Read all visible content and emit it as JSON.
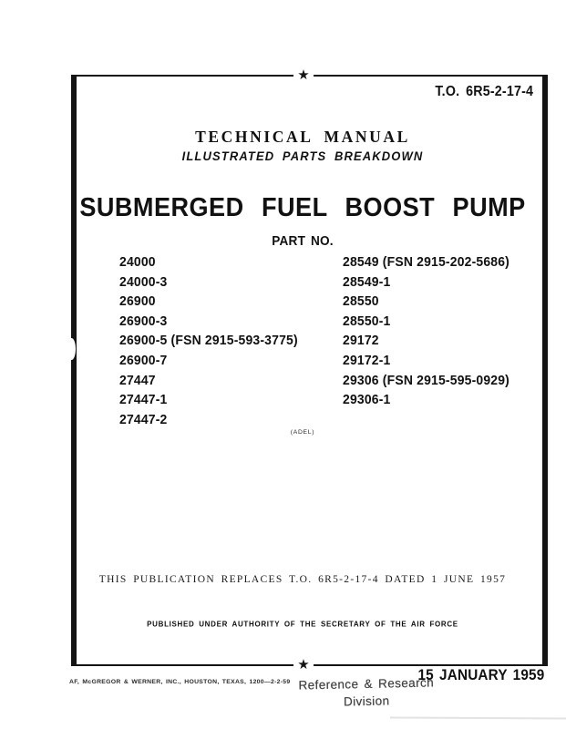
{
  "decor": {
    "star": "★"
  },
  "header": {
    "to_number": "T.O. 6R5-2-17-4",
    "heading": "TECHNICAL MANUAL",
    "subheading": "ILLUSTRATED PARTS BREAKDOWN"
  },
  "title": "SUBMERGED FUEL BOOST PUMP",
  "parts": {
    "label": "PART NO.",
    "left": [
      "24000",
      "24000-3",
      "26900",
      "26900-3",
      "26900-5 (FSN 2915-593-3775)",
      "26900-7",
      "27447",
      "27447-1",
      "27447-2"
    ],
    "right": [
      "28549 (FSN 2915-202-5686)",
      "28549-1",
      "28550",
      "28550-1",
      "29172",
      "29172-1",
      "29306 (FSN 2915-595-0929)",
      "29306-1"
    ]
  },
  "manufacturer_note": "(ADEL)",
  "notices": {
    "replacement": "THIS PUBLICATION REPLACES T.O. 6R5-2-17-4 DATED 1 JUNE 1957",
    "authority": "PUBLISHED UNDER AUTHORITY OF THE SECRETARY OF THE AIR FORCE"
  },
  "footer": {
    "printer": "AF, McGREGOR & WERNER, INC., HOUSTON, TEXAS, 1200—2-2-59",
    "stamp_line1": "Reference & Research",
    "stamp_line2": "Division",
    "date": "15 JANUARY 1959"
  }
}
